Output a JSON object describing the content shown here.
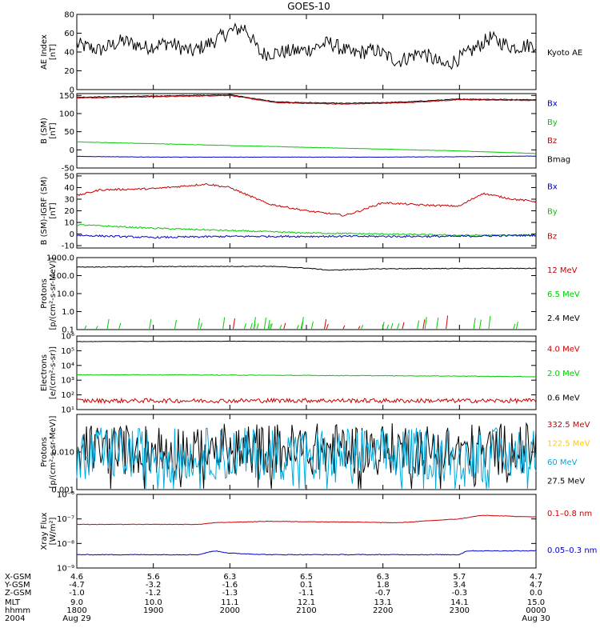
{
  "title": "GOES-10",
  "chart_data": [
    {
      "type": "line",
      "panel": "ae-index",
      "ylabel": [
        "AE Index",
        "[nT]"
      ],
      "ylim": [
        0,
        80
      ],
      "yscale": "linear",
      "yticks": [
        "0",
        "20",
        "40",
        "60",
        "80"
      ],
      "yticks_values": [
        0,
        20,
        40,
        60,
        80
      ],
      "legend": [
        {
          "label": "Kyoto AE",
          "color": "#000000"
        }
      ],
      "series": [
        {
          "name": "Kyoto AE",
          "color": "#000000",
          "x": [
            18.0,
            18.3,
            18.6,
            18.9,
            19.2,
            19.5,
            19.8,
            20.0,
            20.2,
            20.4,
            20.7,
            21.0,
            21.3,
            21.6,
            21.9,
            22.2,
            22.5,
            22.8,
            23.1,
            23.4,
            23.7,
            24.0
          ],
          "y": [
            48,
            42,
            52,
            45,
            50,
            40,
            52,
            62,
            66,
            38,
            40,
            42,
            50,
            38,
            42,
            30,
            40,
            25,
            38,
            55,
            45,
            48
          ],
          "noise": 8
        }
      ]
    },
    {
      "type": "line",
      "panel": "b-sm",
      "ylabel": [
        "B (SM)",
        "[nT]"
      ],
      "ylim": [
        -50,
        155
      ],
      "yscale": "linear",
      "yticks": [
        "-50",
        "0",
        "50",
        "100",
        "150"
      ],
      "yticks_values": [
        -50,
        0,
        50,
        100,
        150
      ],
      "legend": [
        {
          "label": "Bx",
          "color": "#0000cc"
        },
        {
          "label": "By",
          "color": "#00cc00"
        },
        {
          "label": "Bz",
          "color": "#cc0000"
        },
        {
          "label": "Bmag",
          "color": "#000000"
        }
      ],
      "series": [
        {
          "name": "Bmag",
          "color": "#000000",
          "x": [
            18.0,
            19.5,
            20.0,
            20.6,
            21.5,
            22.3,
            23.0,
            24.0
          ],
          "y": [
            145,
            150,
            152,
            132,
            128,
            132,
            140,
            138
          ],
          "noise": 1
        },
        {
          "name": "Bz",
          "color": "#cc0000",
          "x": [
            18.0,
            19.5,
            20.0,
            20.6,
            21.5,
            22.3,
            23.0,
            24.0
          ],
          "y": [
            143,
            148,
            150,
            130,
            126,
            130,
            138,
            136
          ],
          "noise": 1
        },
        {
          "name": "By",
          "color": "#00cc00",
          "x": [
            18.0,
            19.0,
            20.0,
            21.0,
            22.0,
            23.0,
            24.0
          ],
          "y": [
            22,
            17,
            12,
            7,
            2,
            -3,
            -10
          ],
          "noise": 0.5
        },
        {
          "name": "Bx",
          "color": "#0000cc",
          "x": [
            18.0,
            19.0,
            20.0,
            21.0,
            22.0,
            23.0,
            24.0
          ],
          "y": [
            -18,
            -20,
            -20,
            -20,
            -20,
            -19,
            -17
          ],
          "noise": 0.5
        }
      ]
    },
    {
      "type": "line",
      "panel": "b-minus-igrf",
      "ylabel": [
        "B (SM)-IGRF (SM)",
        "[nT]"
      ],
      "ylim": [
        -12,
        52
      ],
      "yscale": "linear",
      "yticks": [
        "-10",
        "0",
        "10",
        "20",
        "30",
        "40",
        "50"
      ],
      "yticks_values": [
        -10,
        0,
        10,
        20,
        30,
        40,
        50
      ],
      "legend": [
        {
          "label": "Bx",
          "color": "#0000cc"
        },
        {
          "label": "By",
          "color": "#00cc00"
        },
        {
          "label": "Bz",
          "color": "#cc0000"
        }
      ],
      "series": [
        {
          "name": "Bz",
          "color": "#cc0000",
          "x": [
            18.0,
            18.3,
            19.0,
            19.7,
            20.0,
            20.5,
            21.0,
            21.5,
            21.7,
            22.0,
            22.5,
            23.0,
            23.3,
            23.7,
            24.0
          ],
          "y": [
            33,
            38,
            39,
            43,
            40,
            26,
            20,
            16,
            20,
            27,
            25,
            24,
            35,
            30,
            28
          ],
          "noise": 0.8
        },
        {
          "name": "By",
          "color": "#00cc00",
          "x": [
            18.0,
            19.0,
            20.0,
            21.0,
            22.0,
            23.0,
            24.0
          ],
          "y": [
            8,
            5,
            3,
            1,
            0,
            -1,
            -1
          ],
          "noise": 0.6
        },
        {
          "name": "Bx",
          "color": "#0000cc",
          "x": [
            18.0,
            19.0,
            20.0,
            21.0,
            22.0,
            23.0,
            24.0
          ],
          "y": [
            -1,
            -3,
            -2,
            -2,
            -2,
            -2,
            -1
          ],
          "noise": 0.8
        }
      ]
    },
    {
      "type": "line",
      "panel": "protons-low",
      "ylabel": [
        "Protons",
        "[p/(cm²-s-sr-MeV)]"
      ],
      "ylim": [
        0.1,
        1000
      ],
      "yscale": "log",
      "yticks": [
        "0.1",
        "1.0",
        "10.0",
        "100.0",
        "1000.0"
      ],
      "yticks_values": [
        0.1,
        1,
        10,
        100,
        1000
      ],
      "legend": [
        {
          "label": "12 MeV",
          "color": "#cc0000"
        },
        {
          "label": "6.5 MeV",
          "color": "#00cc00"
        },
        {
          "label": "2.4 MeV",
          "color": "#000000"
        }
      ],
      "series": [
        {
          "name": "2.4 MeV",
          "color": "#000000",
          "x": [
            18.0,
            19.5,
            20.5,
            21.0,
            21.3,
            22.0,
            23.0,
            24.0
          ],
          "y": [
            300,
            320,
            330,
            260,
            200,
            240,
            250,
            250
          ],
          "noise": 0.02,
          "log": true
        }
      ]
    },
    {
      "type": "line",
      "panel": "electrons",
      "ylabel": [
        "Electrons",
        "[e/(cm²-s-sr)]"
      ],
      "ylim": [
        10,
        1000000
      ],
      "yscale": "log",
      "yticks": [
        "10¹",
        "10²",
        "10³",
        "10⁴",
        "10⁵",
        "10⁶"
      ],
      "yticks_values": [
        10,
        100,
        1000,
        10000,
        100000,
        1000000
      ],
      "legend": [
        {
          "label": "4.0 MeV",
          "color": "#cc0000"
        },
        {
          "label": "2.0 MeV",
          "color": "#00cc00"
        },
        {
          "label": "0.6 MeV",
          "color": "#000000"
        }
      ],
      "series": [
        {
          "name": "0.6 MeV",
          "color": "#000000",
          "x": [
            18.0,
            19.0,
            20.0,
            21.0,
            22.0,
            23.0,
            24.0
          ],
          "y": [
            420000,
            430000,
            440000,
            420000,
            430000,
            440000,
            420000
          ],
          "noise": 0.01,
          "log": true
        },
        {
          "name": "2.0 MeV",
          "color": "#00cc00",
          "x": [
            18.0,
            19.0,
            20.0,
            21.0,
            22.0,
            23.0,
            24.0
          ],
          "y": [
            2300,
            2300,
            2200,
            2100,
            2000,
            1900,
            1700
          ],
          "noise": 0.02,
          "log": true
        },
        {
          "name": "4.0 MeV",
          "color": "#cc0000",
          "x": [
            18.0,
            19.0,
            20.0,
            21.0,
            22.0,
            23.0,
            24.0
          ],
          "y": [
            40,
            40,
            40,
            42,
            40,
            40,
            40
          ],
          "noise": 0.15,
          "log": true
        }
      ]
    },
    {
      "type": "line",
      "panel": "protons-high",
      "ylabel": [
        "Protons",
        "[p/(cm²-s-sr-MeV)]"
      ],
      "ylim": [
        0.001,
        0.1
      ],
      "yscale": "log",
      "yticks": [
        "0.001",
        "0.010"
      ],
      "yticks_values": [
        0.001,
        0.01
      ],
      "legend": [
        {
          "label": "332.5 MeV",
          "color": "#cc0000"
        },
        {
          "label": "122.5 MeV",
          "color": "#ffcc00"
        },
        {
          "label": "60 MeV",
          "color": "#00aadd"
        },
        {
          "label": "27.5 MeV",
          "color": "#000000"
        }
      ],
      "series": [
        {
          "name": "27.5 MeV",
          "color": "#000000",
          "x": [
            18.0,
            21.0,
            24.0
          ],
          "y": [
            0.012,
            0.012,
            0.012
          ],
          "noise": 0.35,
          "log": true
        },
        {
          "name": "60 MeV",
          "color": "#00aadd",
          "x": [
            18.0,
            21.0,
            24.0
          ],
          "y": [
            0.009,
            0.009,
            0.009
          ],
          "noise": 0.35,
          "log": true
        }
      ]
    },
    {
      "type": "line",
      "panel": "xray-flux",
      "ylabel": [
        "Xray Flux",
        "[W/m²]"
      ],
      "ylim": [
        1e-09,
        1e-06
      ],
      "yscale": "log",
      "yticks": [
        "10⁻⁹",
        "10⁻⁸",
        "10⁻⁷",
        "10⁻⁶"
      ],
      "yticks_values": [
        1e-09,
        1e-08,
        1e-07,
        1e-06
      ],
      "legend": [
        {
          "label": "0.1–0.8 nm",
          "color": "#cc0000"
        },
        {
          "label": "0.05–0.3 nm",
          "color": "#0000cc"
        }
      ],
      "series": [
        {
          "name": "0.1–0.8 nm",
          "color": "#cc0000",
          "x": [
            18.0,
            19.6,
            19.8,
            20.5,
            21.5,
            22.2,
            22.5,
            23.0,
            23.3,
            24.0
          ],
          "y": [
            6e-08,
            6e-08,
            7e-08,
            8e-08,
            7.5e-08,
            7e-08,
            8e-08,
            1e-07,
            1.4e-07,
            1.2e-07
          ],
          "noise": 0.01,
          "log": true
        },
        {
          "name": "0.05–0.3 nm",
          "color": "#0000cc",
          "x": [
            18.0,
            19.6,
            19.8,
            20.0,
            20.5,
            21.5,
            22.5,
            23.0,
            23.1,
            24.0
          ],
          "y": [
            3.5e-09,
            3.5e-09,
            5e-09,
            4e-09,
            3.5e-09,
            3.5e-09,
            3.5e-09,
            3.5e-09,
            5e-09,
            5e-09
          ],
          "noise": 0.015,
          "log": true
        }
      ]
    }
  ],
  "x_axis": {
    "xlim": [
      18.0,
      24.0
    ],
    "ticks": [
      18.0,
      19.0,
      20.0,
      21.0,
      22.0,
      23.0,
      24.0
    ],
    "row_labels": [
      "X-GSM",
      "Y-GSM",
      "Z-GSM",
      "MLT",
      "hhmm",
      "2004"
    ],
    "columns": [
      [
        "4.6",
        "-4.7",
        "-1.0",
        "9.0",
        "1800",
        "Aug 29"
      ],
      [
        "5.6",
        "-3.2",
        "-1.2",
        "10.0",
        "1900",
        ""
      ],
      [
        "6.3",
        "-1.6",
        "-1.3",
        "11.1",
        "2000",
        ""
      ],
      [
        "6.5",
        "0.1",
        "-1.1",
        "12.1",
        "2100",
        ""
      ],
      [
        "6.3",
        "1.8",
        "-0.7",
        "13.1",
        "2200",
        ""
      ],
      [
        "5.7",
        "3.4",
        "-0.3",
        "14.1",
        "2300",
        ""
      ],
      [
        "4.7",
        "4.7",
        "0.0",
        "15.0",
        "0000",
        "Aug 30"
      ]
    ]
  }
}
